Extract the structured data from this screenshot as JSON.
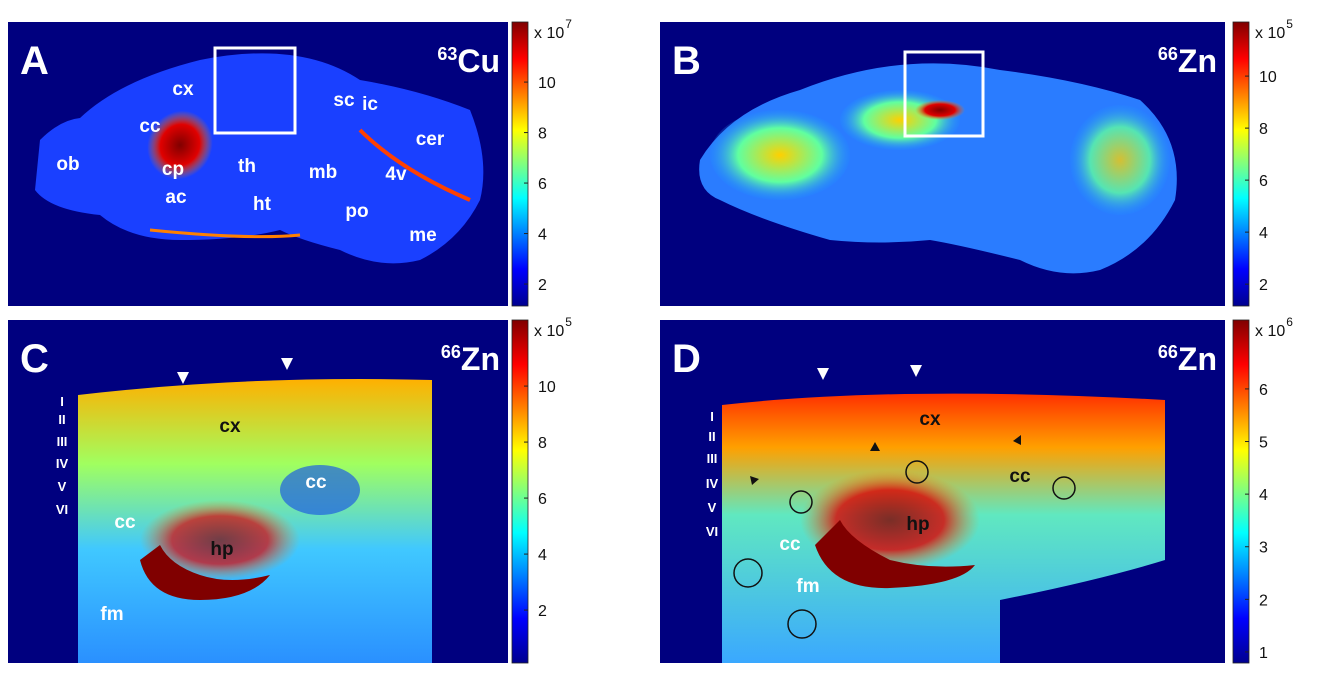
{
  "panels": [
    {
      "letter": "A",
      "isotope": {
        "mass": "63",
        "element": "Cu"
      },
      "colorbar": {
        "multiplier": "x 10",
        "exponent": "7",
        "range": [
          1.13,
          12.38
        ],
        "ticks": [
          2,
          4,
          6,
          8,
          10
        ]
      },
      "labels": [
        "cx",
        "cc",
        "cp",
        "ac",
        "ob",
        "th",
        "ht",
        "mb",
        "po",
        "sc",
        "ic",
        "cer",
        "4v",
        "me"
      ]
    },
    {
      "letter": "B",
      "isotope": {
        "mass": "66",
        "element": "Zn"
      },
      "colorbar": {
        "multiplier": "x 10",
        "exponent": "5",
        "range": [
          1.16,
          12.08
        ],
        "ticks": [
          2,
          4,
          6,
          8,
          10
        ]
      },
      "labels": []
    },
    {
      "letter": "C",
      "isotope": {
        "mass": "66",
        "element": "Zn"
      },
      "colorbar": {
        "multiplier": "x 10",
        "exponent": "5",
        "range": [
          0.11,
          12.36
        ],
        "ticks": [
          2,
          4,
          6,
          8,
          10
        ]
      },
      "labels": [
        "cx",
        "cc",
        "cc",
        "hp",
        "fm"
      ],
      "layers": [
        "I",
        "II",
        "III",
        "IV",
        "V",
        "VI"
      ]
    },
    {
      "letter": "D",
      "isotope": {
        "mass": "66",
        "element": "Zn"
      },
      "colorbar": {
        "multiplier": "x 10",
        "exponent": "6",
        "range": [
          0.79,
          7.31
        ],
        "ticks": [
          1,
          2,
          3,
          4,
          5,
          6
        ]
      },
      "labels": [
        "cx",
        "cc",
        "cc",
        "hp",
        "fm"
      ],
      "layers": [
        "I",
        "II",
        "III",
        "IV",
        "V",
        "VI"
      ]
    }
  ]
}
